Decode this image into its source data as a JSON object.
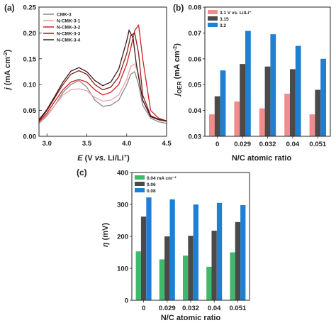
{
  "chart_data": [
    {
      "panel": "(a)",
      "type": "line",
      "xlabel": "E (V vs. Li/Li⁺)",
      "ylabel": "j (mA cm⁻²)",
      "xlim": [
        2.9,
        4.5
      ],
      "ylim": [
        0,
        0.25
      ],
      "xticks": [
        3.0,
        3.5,
        4.0,
        4.5
      ],
      "yticks": [
        0.0,
        0.05,
        0.1,
        0.15,
        0.2,
        0.25
      ],
      "legend_position": "top-left",
      "series": [
        {
          "name": "CMK-3",
          "color": "#8a8a8a",
          "x": [
            2.9,
            3.0,
            3.1,
            3.2,
            3.3,
            3.4,
            3.5,
            3.6,
            3.7,
            3.8,
            3.9,
            4.0,
            4.05,
            4.1,
            4.15,
            4.2,
            4.3,
            4.4,
            4.5
          ],
          "y": [
            0.025,
            0.04,
            0.06,
            0.085,
            0.1,
            0.108,
            0.095,
            0.07,
            0.058,
            0.06,
            0.07,
            0.1,
            0.12,
            0.125,
            0.1,
            0.06,
            0.035,
            0.028,
            0.025
          ]
        },
        {
          "name": "N-CMK-3-1",
          "color": "#e8a3a8",
          "x": [
            2.9,
            3.0,
            3.1,
            3.2,
            3.3,
            3.4,
            3.5,
            3.6,
            3.7,
            3.8,
            3.9,
            4.0,
            4.05,
            4.1,
            4.15,
            4.2,
            4.3,
            4.4,
            4.5
          ],
          "y": [
            0.028,
            0.042,
            0.06,
            0.08,
            0.09,
            0.092,
            0.088,
            0.075,
            0.068,
            0.07,
            0.08,
            0.11,
            0.135,
            0.14,
            0.12,
            0.07,
            0.04,
            0.032,
            0.028
          ]
        },
        {
          "name": "N-CMK-3-2",
          "color": "#d11f24",
          "x": [
            2.9,
            3.0,
            3.1,
            3.2,
            3.3,
            3.4,
            3.5,
            3.6,
            3.7,
            3.8,
            3.9,
            4.0,
            4.05,
            4.1,
            4.15,
            4.2,
            4.3,
            4.4,
            4.5
          ],
          "y": [
            0.028,
            0.045,
            0.068,
            0.09,
            0.105,
            0.11,
            0.105,
            0.09,
            0.08,
            0.085,
            0.1,
            0.14,
            0.17,
            0.205,
            0.215,
            0.15,
            0.05,
            0.035,
            0.03
          ]
        },
        {
          "name": "N-CMK-3-3",
          "color": "#8c1d1d",
          "x": [
            2.9,
            3.0,
            3.1,
            3.2,
            3.3,
            3.4,
            3.5,
            3.6,
            3.7,
            3.8,
            3.9,
            4.0,
            4.05,
            4.1,
            4.15,
            4.2,
            4.3,
            4.4,
            4.5
          ],
          "y": [
            0.03,
            0.05,
            0.075,
            0.1,
            0.12,
            0.127,
            0.12,
            0.1,
            0.09,
            0.095,
            0.115,
            0.16,
            0.195,
            0.2,
            0.16,
            0.08,
            0.04,
            0.033,
            0.03
          ]
        },
        {
          "name": "N-CMK-3-4",
          "color": "#3a1a1a",
          "x": [
            2.9,
            3.0,
            3.1,
            3.2,
            3.3,
            3.4,
            3.5,
            3.6,
            3.7,
            3.8,
            3.9,
            4.0,
            4.03,
            4.08,
            4.12,
            4.2,
            4.3,
            4.4,
            4.5
          ],
          "y": [
            0.032,
            0.052,
            0.078,
            0.105,
            0.126,
            0.133,
            0.125,
            0.108,
            0.098,
            0.105,
            0.13,
            0.185,
            0.205,
            0.19,
            0.14,
            0.07,
            0.038,
            0.032,
            0.03
          ]
        }
      ]
    },
    {
      "panel": "(b)",
      "type": "bar",
      "xlabel": "N/C atomic ratio",
      "ylabel": "j_OER (mA cm⁻²)",
      "categories": [
        "0",
        "0.029",
        "0.032",
        "0.04",
        "0.051"
      ],
      "ylim": [
        0.03,
        0.08
      ],
      "yticks": [
        0.03,
        0.04,
        0.05,
        0.06,
        0.07,
        0.08
      ],
      "legend_position": "top-left",
      "series": [
        {
          "name": "3.1 V vs. Li/Li⁺",
          "color": "#f28c8c",
          "values": [
            0.0385,
            0.0435,
            0.0408,
            0.0465,
            0.0385
          ]
        },
        {
          "name": "3.15",
          "color": "#4a4a4a",
          "values": [
            0.0455,
            0.058,
            0.057,
            0.056,
            0.048
          ]
        },
        {
          "name": "3.2",
          "color": "#1f7fd1",
          "values": [
            0.0555,
            0.0708,
            0.0695,
            0.065,
            0.06
          ]
        }
      ]
    },
    {
      "panel": "(c)",
      "type": "bar",
      "xlabel": "N/C atomic ratio",
      "ylabel": "η (mV)",
      "categories": [
        "0",
        "0.029",
        "0.032",
        "0.04",
        "0.051"
      ],
      "ylim": [
        0,
        400
      ],
      "yticks": [
        0,
        100,
        200,
        300,
        400
      ],
      "legend_position": "top-left",
      "series": [
        {
          "name": "0.04 mA cm⁻²",
          "color": "#3fb96b",
          "values": [
            153,
            128,
            140,
            105,
            150
          ]
        },
        {
          "name": "0.06",
          "color": "#4a4a4a",
          "values": [
            262,
            200,
            202,
            218,
            245
          ]
        },
        {
          "name": "0.08",
          "color": "#1f7fd1",
          "values": [
            322,
            316,
            300,
            305,
            298
          ]
        }
      ]
    }
  ]
}
